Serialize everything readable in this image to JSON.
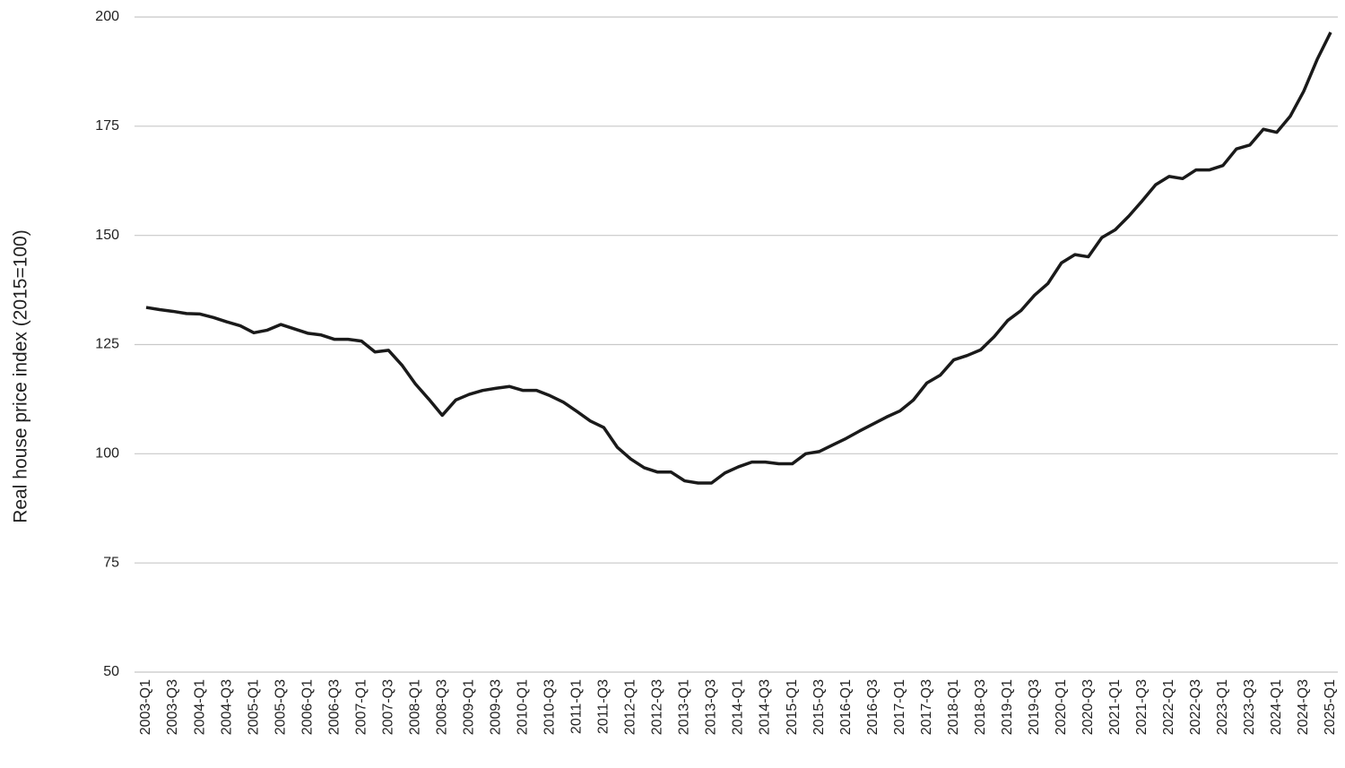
{
  "chart_data": {
    "type": "line",
    "y_label": "Real house price index (2015=100)",
    "categories": [
      "2003-Q1",
      null,
      "2003-Q3",
      null,
      "2004-Q1",
      null,
      "2004-Q3",
      null,
      "2005-Q1",
      null,
      "2005-Q3",
      null,
      "2006-Q1",
      null,
      "2006-Q3",
      null,
      "2007-Q1",
      null,
      "2007-Q3",
      null,
      "2008-Q1",
      null,
      "2008-Q3",
      null,
      "2009-Q1",
      null,
      "2009-Q3",
      null,
      "2010-Q1",
      null,
      "2010-Q3",
      null,
      "2011-Q1",
      null,
      "2011-Q3",
      null,
      "2012-Q1",
      null,
      "2012-Q3",
      null,
      "2013-Q1",
      null,
      "2013-Q3",
      null,
      "2014-Q1",
      null,
      "2014-Q3",
      null,
      "2015-Q1",
      null,
      "2015-Q3",
      null,
      "2016-Q1",
      null,
      "2016-Q3",
      null,
      "2017-Q1",
      null,
      "2017-Q3",
      null,
      "2018-Q1",
      null,
      "2018-Q3",
      null,
      "2019-Q1",
      null,
      "2019-Q3",
      null,
      "2020-Q1",
      null,
      "2020-Q3",
      null,
      "2021-Q1",
      null,
      "2021-Q3",
      null,
      "2022-Q1",
      null,
      "2022-Q3",
      null,
      "2023-Q1",
      null,
      "2023-Q3",
      null,
      "2024-Q1",
      null,
      "2024-Q3",
      null,
      "2025-Q1"
    ],
    "values": [
      133.5,
      133.0,
      132.6,
      132.1,
      132.0,
      131.2,
      130.2,
      129.3,
      127.7,
      128.3,
      129.6,
      128.6,
      127.6,
      127.2,
      126.2,
      126.2,
      125.8,
      123.3,
      123.7,
      120.3,
      116.0,
      112.5,
      108.8,
      112.3,
      113.6,
      114.5,
      115.0,
      115.4,
      114.5,
      114.5,
      113.3,
      111.8,
      109.7,
      107.5,
      106.0,
      101.5,
      98.8,
      96.8,
      95.8,
      95.8,
      93.8,
      93.3,
      93.3,
      95.6,
      97.0,
      98.1,
      98.1,
      97.7,
      97.7,
      100.0,
      100.5,
      102.0,
      103.5,
      105.2,
      106.8,
      108.4,
      109.8,
      112.3,
      116.2,
      118.0,
      121.5,
      122.5,
      123.8,
      126.8,
      130.5,
      132.8,
      136.3,
      139.0,
      143.7,
      145.6,
      145.1,
      149.5,
      151.3,
      154.4,
      157.9,
      161.6,
      163.5,
      163.0,
      165.0,
      165.0,
      166.0,
      169.8,
      170.7,
      174.3,
      173.6,
      177.3,
      183.0,
      190.3,
      196.5
    ],
    "color": "#1a1a1a",
    "ylim": [
      50,
      200
    ],
    "yticks": [
      50,
      75,
      100,
      125,
      150,
      175,
      200
    ],
    "grid": true
  }
}
